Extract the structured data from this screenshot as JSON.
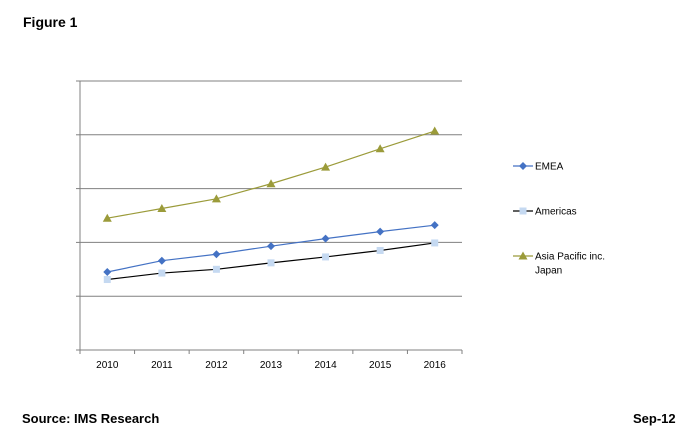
{
  "figure_label": "Figure 1",
  "footer": {
    "source": "Source: IMS Research",
    "date": "Sep-12"
  },
  "chart_data": {
    "type": "line",
    "title": "",
    "xlabel": "",
    "ylabel": "",
    "categories": [
      "2010",
      "2011",
      "2012",
      "2013",
      "2014",
      "2015",
      "2016"
    ],
    "ylim": [
      0,
      5
    ],
    "y_tick_labels_shown": false,
    "grid": "horizontal",
    "legend_position": "right",
    "series": [
      {
        "name": "EMEA",
        "marker": "diamond",
        "color": "#4472C4",
        "line_color": "#4472C4",
        "values": [
          1.45,
          1.66,
          1.78,
          1.93,
          2.07,
          2.2,
          2.32
        ]
      },
      {
        "name": "Americas",
        "marker": "square",
        "color": "#C5D9F1",
        "line_color": "#000000",
        "values": [
          1.31,
          1.43,
          1.5,
          1.62,
          1.73,
          1.85,
          1.99
        ]
      },
      {
        "name_lines": [
          "Asia Pacific inc.",
          "Japan"
        ],
        "marker": "triangle",
        "color": "#9B9B3A",
        "line_color": "#9B9B3A",
        "values": [
          2.45,
          2.63,
          2.81,
          3.09,
          3.4,
          3.74,
          4.07
        ]
      }
    ]
  }
}
